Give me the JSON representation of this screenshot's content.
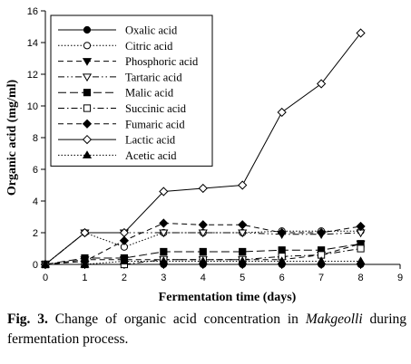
{
  "chart_data": {
    "type": "line",
    "xlabel": "Fermentation time (days)",
    "ylabel": "Organic acid (mg/ml)",
    "xlim": [
      0,
      9
    ],
    "ylim": [
      0,
      16
    ],
    "x_ticks": [
      0,
      1,
      2,
      3,
      4,
      5,
      6,
      7,
      8,
      9
    ],
    "y_ticks": [
      0,
      2,
      4,
      6,
      8,
      10,
      12,
      14,
      16
    ],
    "grid": false,
    "legend_position": "top-left",
    "x": [
      0,
      1,
      2,
      3,
      4,
      5,
      6,
      7,
      8
    ],
    "series": [
      {
        "name": "Oxalic acid",
        "marker": "filled-circle",
        "dash": "solid",
        "values": [
          0,
          0,
          0,
          0,
          0,
          0,
          0,
          0,
          0
        ]
      },
      {
        "name": "Citric acid",
        "marker": "open-circle",
        "dash": "dotted",
        "values": [
          0,
          2.0,
          1.1,
          2.0,
          2.0,
          2.0,
          2.1,
          2.1,
          2.1
        ]
      },
      {
        "name": "Phosphoric acid",
        "marker": "filled-triangle-down",
        "dash": "dashed",
        "values": [
          0,
          0.3,
          0.3,
          0.3,
          0.3,
          0.3,
          0.3,
          0.6,
          1.3
        ]
      },
      {
        "name": "Tartaric acid",
        "marker": "open-triangle-down",
        "dash": "dashdotdot",
        "values": [
          0,
          2.0,
          2.0,
          2.0,
          2.0,
          2.0,
          1.9,
          1.9,
          2.0
        ]
      },
      {
        "name": "Malic acid",
        "marker": "filled-square",
        "dash": "longdash",
        "values": [
          0,
          0.4,
          0.4,
          0.8,
          0.8,
          0.8,
          0.9,
          0.9,
          1.3
        ]
      },
      {
        "name": "Succinic acid",
        "marker": "open-square",
        "dash": "dashdot",
        "values": [
          0,
          0,
          0,
          0.3,
          0.3,
          0.3,
          0.5,
          0.6,
          1.0
        ]
      },
      {
        "name": "Fumaric acid",
        "marker": "filled-diamond",
        "dash": "dashed",
        "values": [
          0,
          0.2,
          1.5,
          2.6,
          2.5,
          2.5,
          2.0,
          2.0,
          2.4
        ]
      },
      {
        "name": "Lactic acid",
        "marker": "open-diamond",
        "dash": "solid",
        "values": [
          0,
          2.0,
          2.0,
          4.6,
          4.8,
          5.0,
          9.6,
          11.4,
          14.6
        ]
      },
      {
        "name": "Acetic acid",
        "marker": "filled-triangle-up",
        "dash": "dotted",
        "values": [
          0,
          0,
          0.2,
          0.2,
          0.2,
          0.2,
          0.2,
          0.2,
          0.2
        ]
      }
    ]
  },
  "caption": {
    "label": "Fig. 3.",
    "text_before": " Change of organic acid concentration in ",
    "italic": "Makgeolli",
    "text_after": " during fermentation process."
  }
}
